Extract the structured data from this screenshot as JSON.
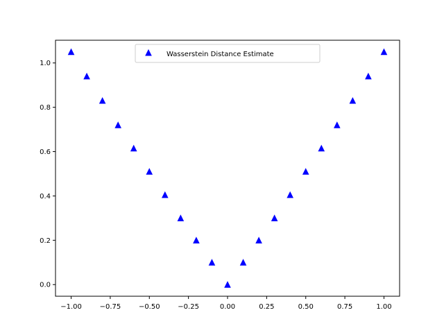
{
  "chart_data": {
    "type": "scatter",
    "title": "",
    "xlabel": "",
    "ylabel": "",
    "xlim": [
      -1.1,
      1.1
    ],
    "ylim": [
      -0.0525,
      1.1025
    ],
    "grid": false,
    "legend_position": "top-center",
    "x_ticks": [
      -1.0,
      -0.75,
      -0.5,
      -0.25,
      0.0,
      0.25,
      0.5,
      0.75,
      1.0
    ],
    "x_tick_labels": [
      "−1.00",
      "−0.75",
      "−0.50",
      "−0.25",
      "0.00",
      "0.25",
      "0.50",
      "0.75",
      "1.00"
    ],
    "y_ticks": [
      0.0,
      0.2,
      0.4,
      0.6,
      0.8,
      1.0
    ],
    "y_tick_labels": [
      "0.0",
      "0.2",
      "0.4",
      "0.6",
      "0.8",
      "1.0"
    ],
    "series": [
      {
        "name": "Wasserstein Distance Estimate",
        "color": "#0000ff",
        "marker": "triangle-up",
        "x": [
          -1.0,
          -0.9,
          -0.8,
          -0.7,
          -0.6,
          -0.5,
          -0.4,
          -0.3,
          -0.2,
          -0.1,
          0.0,
          0.1,
          0.2,
          0.3,
          0.4,
          0.5,
          0.6,
          0.7,
          0.8,
          0.9,
          1.0
        ],
        "y": [
          1.05,
          0.94,
          0.83,
          0.72,
          0.615,
          0.51,
          0.405,
          0.3,
          0.2,
          0.1,
          0.0,
          0.1,
          0.2,
          0.3,
          0.405,
          0.51,
          0.615,
          0.72,
          0.83,
          0.94,
          1.05
        ]
      }
    ]
  }
}
